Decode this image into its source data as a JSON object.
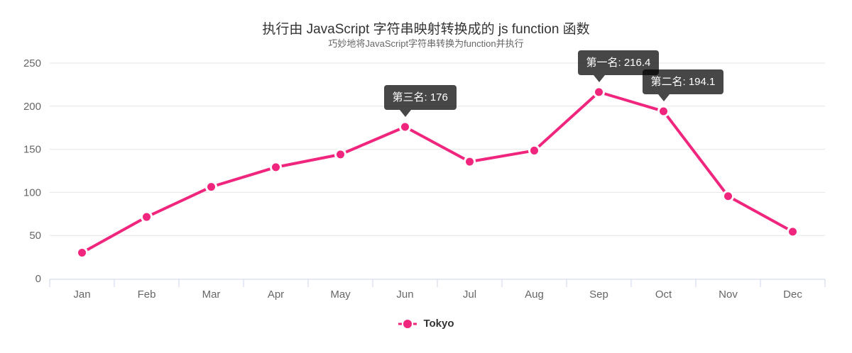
{
  "chart_data": {
    "type": "line",
    "title": "执行由 JavaScript 字符串映射转换成的 js function 函数",
    "subtitle": "巧妙地将JavaScript字符串转换为function并执行",
    "categories": [
      "Jan",
      "Feb",
      "Mar",
      "Apr",
      "May",
      "Jun",
      "Jul",
      "Aug",
      "Sep",
      "Oct",
      "Nov",
      "Dec"
    ],
    "series": [
      {
        "name": "Tokyo",
        "color": "#f0257d",
        "values": [
          30,
          71.5,
          106.4,
          129.2,
          144.0,
          176.0,
          135.6,
          148.5,
          216.4,
          194.1,
          95.6,
          54.4
        ]
      }
    ],
    "ylim": [
      0,
      250
    ],
    "y_ticks": [
      0,
      50,
      100,
      150,
      200,
      250
    ],
    "grid": true,
    "legend_position": "bottom",
    "annotations": [
      {
        "label": "第三名: 176",
        "category": "Jun",
        "value": 176.0
      },
      {
        "label": "第一名: 216.4",
        "category": "Sep",
        "value": 216.4
      },
      {
        "label": "第二名: 194.1",
        "category": "Oct",
        "value": 194.1
      }
    ],
    "colors": {
      "line": "#f0257d",
      "annotation_bg": "rgba(0,0,0,0.72)",
      "annotation_text": "#ffffff",
      "axis_line": "#ccd6eb",
      "gridline": "#e6e6e6",
      "title_text": "#333333",
      "subtitle_text": "#666666",
      "axis_label": "#666666",
      "legend_text": "#333333"
    }
  }
}
